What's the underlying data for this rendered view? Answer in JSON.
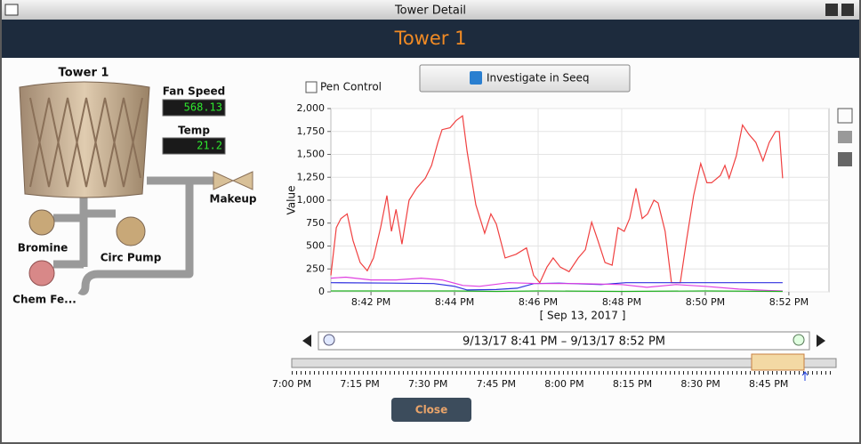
{
  "window": {
    "title": "Tower Detail"
  },
  "header": {
    "title": "Tower 1"
  },
  "diagram": {
    "title": "Tower 1",
    "fan_speed": {
      "label": "Fan Speed",
      "value": "568.13"
    },
    "temp": {
      "label": "Temp",
      "value": "21.2"
    },
    "makeup": "Makeup",
    "bromine": "Bromine",
    "circ_pump": "Circ Pump",
    "chem_feed": "Chem Fe..."
  },
  "pen_control": "Pen Control",
  "investigate_button": "Investigate in Seeq",
  "chart_data": {
    "type": "line",
    "x_label": "[ Sep 13, 2017 ]",
    "y_label": "Value",
    "xlim": [
      41.04,
      52.96
    ],
    "xticks": [
      {
        "value": 42,
        "label": "8:42 PM"
      },
      {
        "value": 44,
        "label": "8:44 PM"
      },
      {
        "value": 46,
        "label": "8:46 PM"
      },
      {
        "value": 48,
        "label": "8:48 PM"
      },
      {
        "value": 50,
        "label": "8:50 PM"
      },
      {
        "value": 52,
        "label": "8:52 PM"
      }
    ],
    "ylim": [
      0,
      2000
    ],
    "yticks": [
      0,
      250,
      500,
      750,
      {
        "value": 1000,
        "label": "1,000"
      },
      {
        "value": 1250,
        "label": "1,250"
      },
      {
        "value": 1500,
        "label": "1,500"
      },
      {
        "value": 1750,
        "label": "1,750"
      },
      {
        "value": 2000,
        "label": "2,000"
      }
    ],
    "grid": true,
    "series": [
      {
        "color": "#f04040",
        "x": [
          41.04,
          41.17,
          41.28,
          41.43,
          41.57,
          41.74,
          41.91,
          42.06,
          42.23,
          42.38,
          42.49,
          42.6,
          42.74,
          42.91,
          43.09,
          43.3,
          43.45,
          43.6,
          43.7,
          43.89,
          44.04,
          44.19,
          44.3,
          44.51,
          44.72,
          44.87,
          45.0,
          45.21,
          45.47,
          45.72,
          45.89,
          46.04,
          46.21,
          46.36,
          46.53,
          46.74,
          46.96,
          47.13,
          47.28,
          47.43,
          47.6,
          47.77,
          47.91,
          48.06,
          48.19,
          48.34,
          48.49,
          48.62,
          48.77,
          48.87,
          49.04,
          49.19,
          49.4,
          49.55,
          49.72,
          49.89,
          50.04,
          50.15,
          50.36,
          50.47,
          50.57,
          50.74,
          50.89,
          51.04,
          51.21,
          51.38,
          51.53,
          51.68,
          51.77,
          51.85
        ],
        "values": [
          180,
          700,
          800,
          850,
          560,
          320,
          230,
          370,
          700,
          1050,
          660,
          900,
          520,
          1000,
          1130,
          1240,
          1380,
          1630,
          1770,
          1790,
          1870,
          1920,
          1530,
          950,
          640,
          850,
          740,
          370,
          410,
          480,
          180,
          100,
          270,
          370,
          270,
          220,
          370,
          460,
          760,
          560,
          320,
          290,
          700,
          660,
          800,
          1130,
          800,
          850,
          1000,
          970,
          660,
          100,
          100,
          560,
          1050,
          1400,
          1190,
          1190,
          1270,
          1380,
          1240,
          1480,
          1820,
          1720,
          1630,
          1430,
          1630,
          1750,
          1750,
          1240
        ]
      },
      {
        "color": "#3030e0",
        "x": [
          41.04,
          42.5,
          43.5,
          44.0,
          44.3,
          45.0,
          45.5,
          45.9,
          46.5,
          47.5,
          48.1,
          49.0,
          50.5,
          51.85
        ],
        "values": [
          100,
          95,
          90,
          60,
          20,
          25,
          40,
          90,
          95,
          80,
          100,
          100,
          100,
          100
        ]
      },
      {
        "color": "#e040e0",
        "x": [
          41.04,
          41.4,
          42.0,
          42.6,
          43.2,
          43.7,
          44.2,
          44.6,
          45.3,
          46.0,
          47.0,
          48.0,
          48.6,
          49.3,
          50.0,
          50.8,
          51.5,
          51.85
        ],
        "values": [
          150,
          160,
          130,
          130,
          150,
          130,
          70,
          60,
          100,
          90,
          90,
          80,
          50,
          80,
          60,
          30,
          15,
          10
        ]
      },
      {
        "color": "#20b020",
        "x": [
          41.04,
          44.0,
          45.0,
          46.0,
          48.0,
          50.0,
          51.85
        ],
        "values": [
          10,
          10,
          5,
          10,
          5,
          10,
          5
        ]
      }
    ]
  },
  "time_range": "9/13/17 8:41 PM – 9/13/17 8:52 PM",
  "timeline": {
    "ticks": [
      "7:00 PM",
      "7:15 PM",
      "7:30 PM",
      "7:45 PM",
      "8:00 PM",
      "8:15 PM",
      "8:30 PM",
      "8:45 PM"
    ]
  },
  "close_button": "Close"
}
